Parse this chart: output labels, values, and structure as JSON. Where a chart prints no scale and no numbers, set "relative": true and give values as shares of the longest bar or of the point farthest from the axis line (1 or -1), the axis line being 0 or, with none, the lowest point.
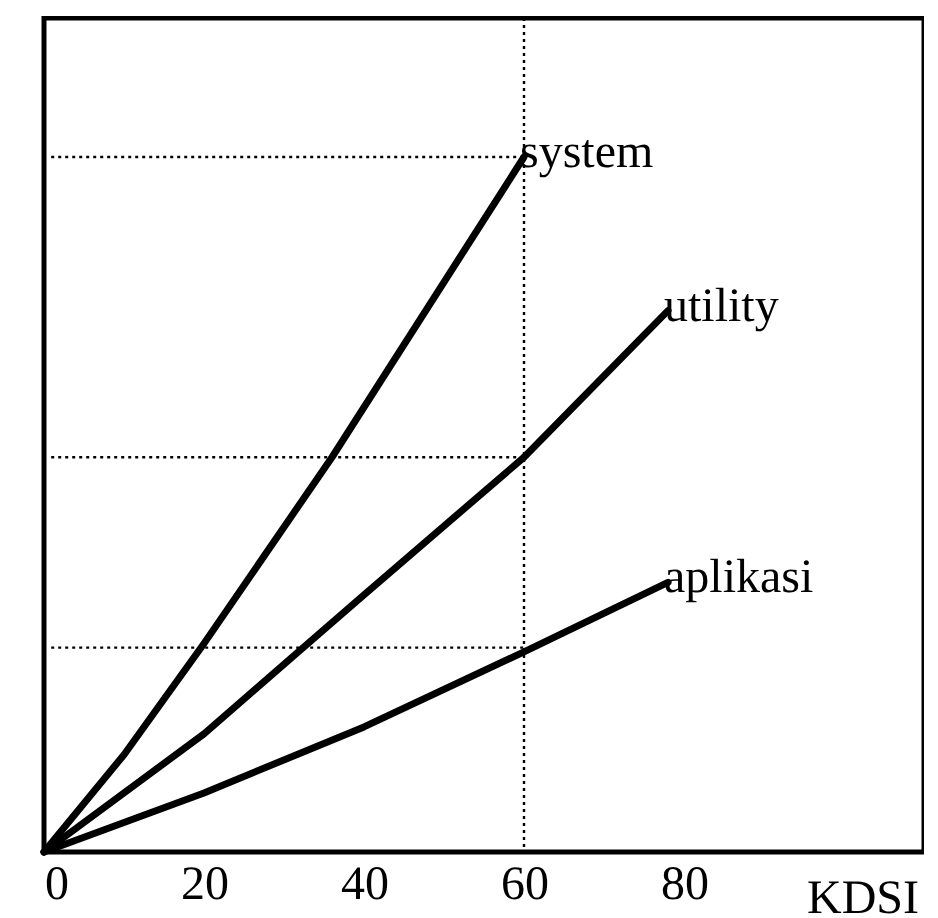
{
  "chart_data": {
    "type": "line",
    "relative": true,
    "xlabel": "KDSI",
    "xlim": [
      0,
      110
    ],
    "xticks": [
      0,
      20,
      40,
      60,
      80
    ],
    "grid": false,
    "legend": false,
    "line_style": "solid",
    "marker": "none",
    "series": [
      {
        "name": "system",
        "color": "#000000",
        "x": [
          0,
          10,
          20,
          36,
          50,
          60
        ],
        "values": [
          0,
          0.14,
          0.3,
          0.568,
          0.82,
          1
        ]
      },
      {
        "name": "utility",
        "color": "#000000",
        "x": [
          0,
          20,
          32,
          40,
          60,
          78
        ],
        "values": [
          0,
          0.17,
          0.29,
          0.37,
          0.568,
          0.779
        ]
      },
      {
        "name": "aplikasi",
        "color": "#000000",
        "x": [
          0,
          20,
          40,
          60,
          78
        ],
        "values": [
          0,
          0.085,
          0.18,
          0.288,
          0.388
        ]
      }
    ],
    "ref_lines": [
      {
        "axis": "x",
        "value": 60,
        "line_style": "dotted"
      },
      {
        "axis": "y",
        "value": 1,
        "line_style": "dotted"
      },
      {
        "axis": "y",
        "value": 0.568,
        "line_style": "dotted"
      },
      {
        "axis": "y",
        "value": 0.294,
        "line_style": "dotted"
      }
    ]
  }
}
